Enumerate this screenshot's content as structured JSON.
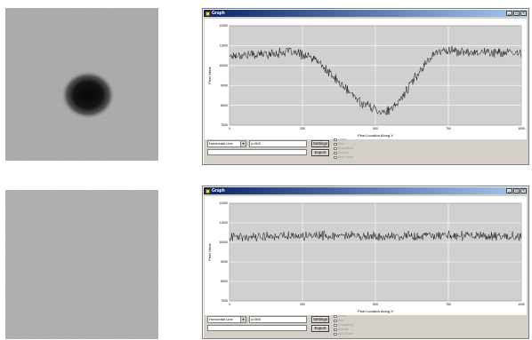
{
  "panels": [
    {
      "id": "top",
      "sample": {
        "has_spot": true
      },
      "window": {
        "title": "Graph",
        "buttons": [
          "_",
          "□",
          "×"
        ],
        "chart": {
          "ylabel": "Pixel Value",
          "xlabel": "Pixel Location Along X",
          "y_ticks": [
            "12000",
            "11000",
            "10000",
            "9000",
            "8000",
            "7000"
          ],
          "x_ticks": [
            "0",
            "250",
            "500",
            "750",
            "1000"
          ]
        },
        "controls": {
          "mode": "Horizontal Line",
          "position": "y=500",
          "settings_label": "Settings",
          "export_label": "Export",
          "options": [
            "Green",
            "Red",
            "Sharpened",
            "Smooth",
            "Auto Scale"
          ]
        }
      }
    },
    {
      "id": "bottom",
      "sample": {
        "has_spot": false
      },
      "window": {
        "title": "Graph",
        "buttons": [
          "_",
          "□",
          "×"
        ],
        "chart": {
          "ylabel": "Pixel Value",
          "xlabel": "Pixel Location Along X",
          "y_ticks": [
            "12000",
            "11000",
            "10000",
            "9000",
            "8000",
            "7000"
          ],
          "x_ticks": [
            "0",
            "250",
            "500",
            "750",
            "1000"
          ]
        },
        "controls": {
          "mode": "Horizontal Line",
          "position": "y=500",
          "settings_label": "Settings",
          "export_label": "Export",
          "options": [
            "Green",
            "Red",
            "Sharpened",
            "Smooth",
            "Auto Scale"
          ]
        }
      }
    }
  ],
  "chart_data": [
    {
      "type": "line",
      "title": "",
      "xlabel": "Pixel Location Along X",
      "ylabel": "Pixel Value",
      "xlim": [
        0,
        1000
      ],
      "ylim": [
        7000,
        12000
      ],
      "grid": true,
      "x": [
        0,
        150,
        200,
        250,
        300,
        350,
        400,
        450,
        500,
        530,
        560,
        600,
        650,
        700,
        750,
        800,
        850,
        900,
        1000
      ],
      "series": [
        {
          "values": [
            10500,
            10600,
            10700,
            10550,
            10250,
            9500,
            8800,
            8150,
            7800,
            7650,
            7800,
            8600,
            9700,
            10600,
            10800,
            10650,
            10700,
            10650,
            10600
          ]
        }
      ]
    },
    {
      "type": "line",
      "title": "",
      "xlabel": "Pixel Location Along X",
      "ylabel": "Pixel Value",
      "xlim": [
        0,
        1000
      ],
      "ylim": [
        7000,
        12000
      ],
      "grid": true,
      "x": [
        0,
        250,
        500,
        750,
        1000
      ],
      "series": [
        {
          "values": [
            10300,
            10350,
            10300,
            10350,
            10300
          ]
        }
      ]
    }
  ]
}
